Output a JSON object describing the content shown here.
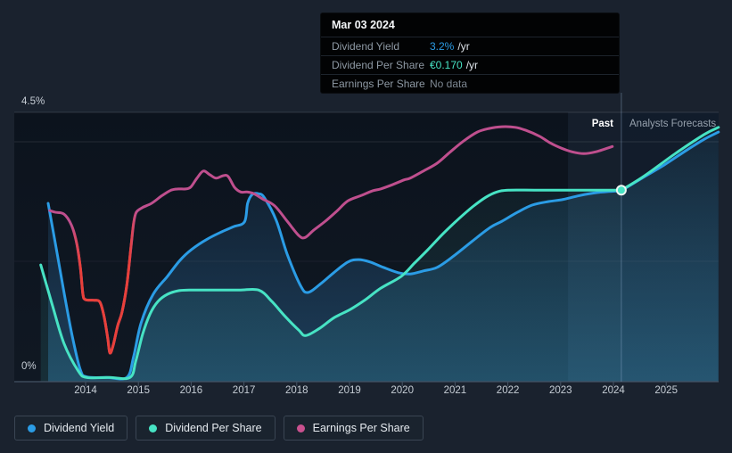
{
  "page": {
    "bg": "#1a222e"
  },
  "tooltip": {
    "title": "Mar 03 2024",
    "rows": [
      {
        "label": "Dividend Yield",
        "value": "3.2%",
        "suffix": "/yr",
        "value_color": "#2b9ce5"
      },
      {
        "label": "Dividend Per Share",
        "value": "€0.170",
        "suffix": "/yr",
        "value_color": "#47e3c4"
      },
      {
        "label": "Earnings Per Share",
        "value": "No data",
        "suffix": "",
        "value_color": "#7d8792"
      }
    ]
  },
  "header": {
    "past_label": "Past",
    "forecast_label": "Analysts Forecasts"
  },
  "y_axis": {
    "top_label": "4.5%",
    "bottom_label": "0%"
  },
  "x_axis": {
    "years": [
      2014,
      2015,
      2016,
      2017,
      2018,
      2019,
      2020,
      2021,
      2022,
      2023,
      2024,
      2025
    ]
  },
  "legend": {
    "items": [
      {
        "label": "Dividend Yield",
        "color": "#2b9ce5"
      },
      {
        "label": "Dividend Per Share",
        "color": "#47e3c4"
      },
      {
        "label": "Earnings Per Share",
        "color": "#c9518f"
      }
    ]
  },
  "chart_data": {
    "type": "line",
    "xlim": [
      2012.65,
      2026.02
    ],
    "ylim": [
      0,
      4.5
    ],
    "y_tick_labels": [
      "0%",
      "4.5%"
    ],
    "divider_year": 2024.15,
    "highlight_band_years": [
      2023.14,
      2024.15
    ],
    "grid": {
      "h_lines_pct": [
        4.5,
        4.0,
        2.0,
        0.0
      ]
    },
    "marker": {
      "series": "dividend_per_share",
      "year": 2024.15,
      "value": 3.2,
      "color": "#47e3c4",
      "label_yield": "3.2%",
      "label_dps": "€0.170"
    },
    "units_note": "Dividend Yield in %. Dividend Per Share and Earnings Per Share plotted on relative unlabeled axes (€0.170 DPS sits at the 3.2 level). Red segment of EPS = negative-earnings period.",
    "series": [
      {
        "id": "dividend_yield",
        "name": "Dividend Yield",
        "color": "#2b9ce5",
        "past": [
          [
            2013.29,
            2.98
          ],
          [
            2013.45,
            2.2
          ],
          [
            2013.6,
            1.45
          ],
          [
            2013.75,
            0.75
          ],
          [
            2013.9,
            0.2
          ],
          [
            2014.02,
            0.08
          ],
          [
            2014.4,
            0.07
          ],
          [
            2014.78,
            0.07
          ],
          [
            2014.91,
            0.42
          ],
          [
            2015.05,
            0.98
          ],
          [
            2015.28,
            1.46
          ],
          [
            2015.55,
            1.76
          ],
          [
            2015.79,
            2.03
          ],
          [
            2016.01,
            2.21
          ],
          [
            2016.3,
            2.38
          ],
          [
            2016.57,
            2.5
          ],
          [
            2016.8,
            2.59
          ],
          [
            2017.01,
            2.67
          ],
          [
            2017.07,
            2.98
          ],
          [
            2017.16,
            3.13
          ],
          [
            2017.28,
            3.14
          ],
          [
            2017.39,
            3.07
          ],
          [
            2017.61,
            2.7
          ],
          [
            2017.82,
            2.13
          ],
          [
            2018.07,
            1.61
          ],
          [
            2018.21,
            1.49
          ],
          [
            2018.46,
            1.64
          ],
          [
            2018.7,
            1.82
          ],
          [
            2018.97,
            2.0
          ],
          [
            2019.17,
            2.04
          ],
          [
            2019.39,
            2.0
          ],
          [
            2019.64,
            1.91
          ],
          [
            2019.93,
            1.82
          ],
          [
            2020.15,
            1.8
          ],
          [
            2020.4,
            1.85
          ],
          [
            2020.66,
            1.91
          ],
          [
            2020.96,
            2.09
          ],
          [
            2021.33,
            2.35
          ],
          [
            2021.67,
            2.58
          ],
          [
            2021.89,
            2.68
          ],
          [
            2022.18,
            2.83
          ],
          [
            2022.46,
            2.95
          ],
          [
            2022.77,
            3.01
          ],
          [
            2023.02,
            3.04
          ],
          [
            2023.36,
            3.11
          ],
          [
            2023.7,
            3.16
          ],
          [
            2024.15,
            3.19
          ]
        ],
        "forecast": [
          [
            2024.15,
            3.19
          ],
          [
            2024.54,
            3.4
          ],
          [
            2024.96,
            3.62
          ],
          [
            2025.39,
            3.87
          ],
          [
            2025.72,
            4.05
          ],
          [
            2025.99,
            4.17
          ]
        ]
      },
      {
        "id": "dividend_per_share",
        "name": "Dividend Per Share",
        "color": "#47e3c4",
        "past": [
          [
            2013.15,
            1.95
          ],
          [
            2013.36,
            1.31
          ],
          [
            2013.59,
            0.64
          ],
          [
            2013.86,
            0.18
          ],
          [
            2014.02,
            0.07
          ],
          [
            2014.45,
            0.07
          ],
          [
            2014.84,
            0.07
          ],
          [
            2014.95,
            0.34
          ],
          [
            2015.08,
            0.79
          ],
          [
            2015.22,
            1.13
          ],
          [
            2015.37,
            1.34
          ],
          [
            2015.55,
            1.46
          ],
          [
            2015.76,
            1.52
          ],
          [
            2015.96,
            1.53
          ],
          [
            2016.43,
            1.53
          ],
          [
            2016.91,
            1.53
          ],
          [
            2017.28,
            1.53
          ],
          [
            2017.53,
            1.34
          ],
          [
            2017.78,
            1.09
          ],
          [
            2018.04,
            0.86
          ],
          [
            2018.17,
            0.77
          ],
          [
            2018.43,
            0.89
          ],
          [
            2018.71,
            1.07
          ],
          [
            2019.02,
            1.21
          ],
          [
            2019.3,
            1.37
          ],
          [
            2019.59,
            1.56
          ],
          [
            2019.98,
            1.76
          ],
          [
            2020.23,
            1.98
          ],
          [
            2020.49,
            2.21
          ],
          [
            2020.77,
            2.47
          ],
          [
            2021.08,
            2.73
          ],
          [
            2021.33,
            2.92
          ],
          [
            2021.58,
            3.08
          ],
          [
            2021.79,
            3.17
          ],
          [
            2022.01,
            3.2
          ],
          [
            2022.5,
            3.2
          ],
          [
            2023.0,
            3.2
          ],
          [
            2023.5,
            3.2
          ],
          [
            2024.15,
            3.2
          ]
        ],
        "forecast": [
          [
            2024.15,
            3.2
          ],
          [
            2024.59,
            3.44
          ],
          [
            2025.17,
            3.81
          ],
          [
            2025.72,
            4.13
          ],
          [
            2025.99,
            4.25
          ]
        ]
      },
      {
        "id": "earnings_per_share",
        "name": "Earnings Per Share",
        "color": "#bf4f8e",
        "negative_color": "#e8403a",
        "negative_period": [
          2013.73,
          2014.96
        ],
        "past": [
          [
            2013.32,
            2.86
          ],
          [
            2013.43,
            2.83
          ],
          [
            2013.59,
            2.8
          ],
          [
            2013.73,
            2.62
          ],
          [
            2013.83,
            2.32
          ],
          [
            2013.9,
            1.91
          ],
          [
            2013.95,
            1.46
          ],
          [
            2014.0,
            1.37
          ],
          [
            2014.15,
            1.36
          ],
          [
            2014.27,
            1.33
          ],
          [
            2014.35,
            1.09
          ],
          [
            2014.42,
            0.72
          ],
          [
            2014.46,
            0.48
          ],
          [
            2014.52,
            0.6
          ],
          [
            2014.61,
            0.94
          ],
          [
            2014.69,
            1.16
          ],
          [
            2014.78,
            1.61
          ],
          [
            2014.86,
            2.25
          ],
          [
            2014.91,
            2.65
          ],
          [
            2014.96,
            2.83
          ],
          [
            2015.08,
            2.91
          ],
          [
            2015.25,
            2.98
          ],
          [
            2015.45,
            3.11
          ],
          [
            2015.62,
            3.2
          ],
          [
            2015.76,
            3.22
          ],
          [
            2015.89,
            3.22
          ],
          [
            2015.99,
            3.25
          ],
          [
            2016.11,
            3.4
          ],
          [
            2016.23,
            3.52
          ],
          [
            2016.35,
            3.46
          ],
          [
            2016.47,
            3.4
          ],
          [
            2016.6,
            3.44
          ],
          [
            2016.7,
            3.43
          ],
          [
            2016.82,
            3.25
          ],
          [
            2016.94,
            3.17
          ],
          [
            2017.06,
            3.17
          ],
          [
            2017.19,
            3.14
          ],
          [
            2017.36,
            3.05
          ],
          [
            2017.58,
            2.94
          ],
          [
            2017.82,
            2.68
          ],
          [
            2018.04,
            2.44
          ],
          [
            2018.16,
            2.41
          ],
          [
            2018.32,
            2.53
          ],
          [
            2018.54,
            2.68
          ],
          [
            2018.76,
            2.85
          ],
          [
            2018.97,
            3.02
          ],
          [
            2019.22,
            3.11
          ],
          [
            2019.44,
            3.19
          ],
          [
            2019.59,
            3.22
          ],
          [
            2019.81,
            3.29
          ],
          [
            2020.03,
            3.37
          ],
          [
            2020.15,
            3.4
          ],
          [
            2020.4,
            3.52
          ],
          [
            2020.66,
            3.65
          ],
          [
            2020.91,
            3.84
          ],
          [
            2021.16,
            4.02
          ],
          [
            2021.42,
            4.17
          ],
          [
            2021.64,
            4.23
          ],
          [
            2021.89,
            4.26
          ],
          [
            2022.14,
            4.25
          ],
          [
            2022.34,
            4.2
          ],
          [
            2022.6,
            4.1
          ],
          [
            2022.8,
            3.99
          ],
          [
            2023.02,
            3.9
          ],
          [
            2023.22,
            3.84
          ],
          [
            2023.44,
            3.81
          ],
          [
            2023.66,
            3.84
          ],
          [
            2023.98,
            3.93
          ]
        ],
        "forecast": []
      }
    ]
  }
}
